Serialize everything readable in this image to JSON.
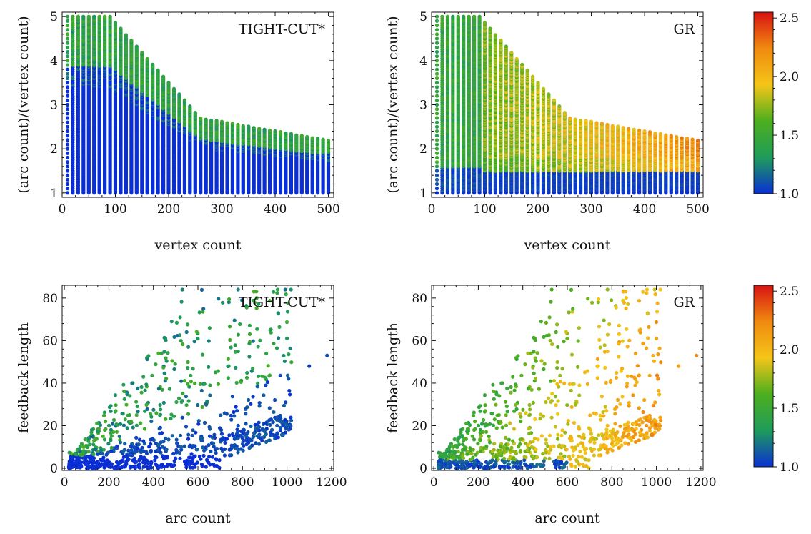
{
  "chart_data": [
    {
      "type": "scatter",
      "panel": "top-left",
      "annotation": "TIGHT-CUT*",
      "xlabel": "vertex count",
      "ylabel": "(arc count)/(vertex count)",
      "xlim": [
        0,
        510
      ],
      "ylim": [
        0.9,
        5.1
      ],
      "xticks": [
        0,
        100,
        200,
        300,
        400,
        500
      ],
      "yticks": [
        1,
        2,
        3,
        4,
        5
      ],
      "color_description": "mostly 1.0 (blue); teal/green 1.3-1.7 along the upper edge of the point cloud"
    },
    {
      "type": "scatter",
      "panel": "top-right",
      "annotation": "GR",
      "xlabel": "vertex count",
      "ylabel": "(arc count)/(vertex count)",
      "xlim": [
        0,
        510
      ],
      "ylim": [
        0.9,
        5.1
      ],
      "xticks": [
        0,
        100,
        200,
        300,
        400,
        500
      ],
      "yticks": [
        1,
        2,
        3,
        4,
        5
      ],
      "color_description": "blue near ratio 1 and for small graphs; green 1.5-1.8 at medium sizes; yellow-orange 1.9-2.5 for larger graphs"
    },
    {
      "type": "scatter",
      "panel": "bottom-left",
      "annotation": "TIGHT-CUT*",
      "xlabel": "arc count",
      "ylabel": "feedback length",
      "xlim": [
        -10,
        1210
      ],
      "ylim": [
        -1,
        86
      ],
      "xticks": [
        0,
        200,
        400,
        600,
        800,
        1000,
        1200
      ],
      "yticks": [
        0,
        20,
        40,
        60,
        80
      ],
      "color_description": "blue at low feedback length, teal/green 1.2-1.6 higher up"
    },
    {
      "type": "scatter",
      "panel": "bottom-right",
      "annotation": "GR",
      "xlabel": "arc count",
      "ylabel": "feedback length",
      "xlim": [
        -10,
        1210
      ],
      "ylim": [
        -1,
        86
      ],
      "xticks": [
        0,
        200,
        400,
        600,
        800,
        1000,
        1200
      ],
      "yticks": [
        0,
        20,
        40,
        60,
        80
      ],
      "color_description": "green 1.5-1.8 for the upper-left cloud; yellow-orange 1.9-2.5 for larger arc counts; blue near zero"
    }
  ],
  "colorbars": [
    {
      "range": [
        1.0,
        2.55
      ],
      "ticks": [
        "1.0",
        "1.5",
        "2.0",
        "2.5"
      ],
      "stops": [
        "#0a2fd4",
        "#1f9c5a",
        "#4caf1e",
        "#f5c518",
        "#f08a10",
        "#d81212"
      ]
    },
    {
      "range": [
        1.0,
        2.55
      ],
      "ticks": [
        "1.0",
        "1.5",
        "2.0",
        "2.5"
      ],
      "stops": [
        "#0a2fd4",
        "#1f9c5a",
        "#4caf1e",
        "#f5c518",
        "#f08a10",
        "#d81212"
      ]
    }
  ]
}
